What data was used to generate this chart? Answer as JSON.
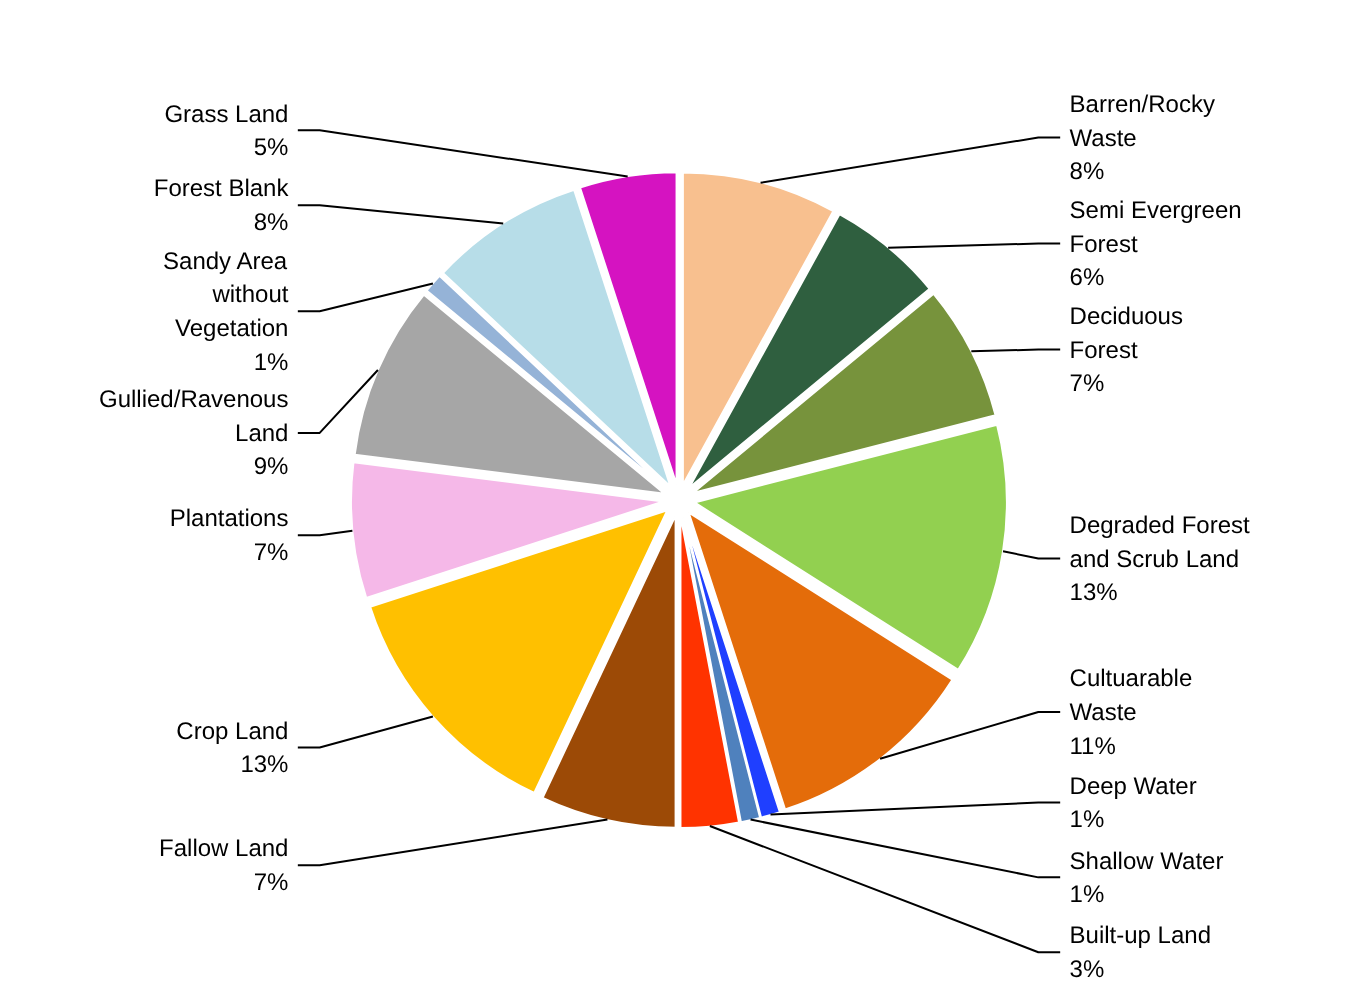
{
  "chart_data": {
    "type": "pie",
    "categories": [
      "Barren/Rocky Waste",
      "Semi Evergreen Forest",
      "Deciduous Forest",
      "Degraded Forest and Scrub Land",
      "Cultuarable Waste",
      "Deep Water",
      "Shallow Water",
      "Built-up Land",
      "Fallow Land",
      "Crop Land",
      "Plantations",
      "Gullied/Ravenous Land",
      "Sandy Area without Vegetation",
      "Forest Blank",
      "Grass Land"
    ],
    "values": [
      8,
      6,
      7,
      13,
      11,
      1,
      1,
      3,
      7,
      13,
      7,
      9,
      1,
      8,
      5
    ],
    "value_labels": [
      "8%",
      "6%",
      "7%",
      "13%",
      "11%",
      "1%",
      "1%",
      "3%",
      "7%",
      "13%",
      "7%",
      "9%",
      "1%",
      "8%",
      "5%"
    ],
    "colors": [
      "#f8c08f",
      "#2f5f3f",
      "#77933c",
      "#92d050",
      "#e46c0a",
      "#1f3fff",
      "#4f81bd",
      "#ff3300",
      "#9c4a06",
      "#ffc000",
      "#f5b8e8",
      "#a6a6a6",
      "#95b3d7",
      "#b7dde8",
      "#d513c1"
    ]
  }
}
